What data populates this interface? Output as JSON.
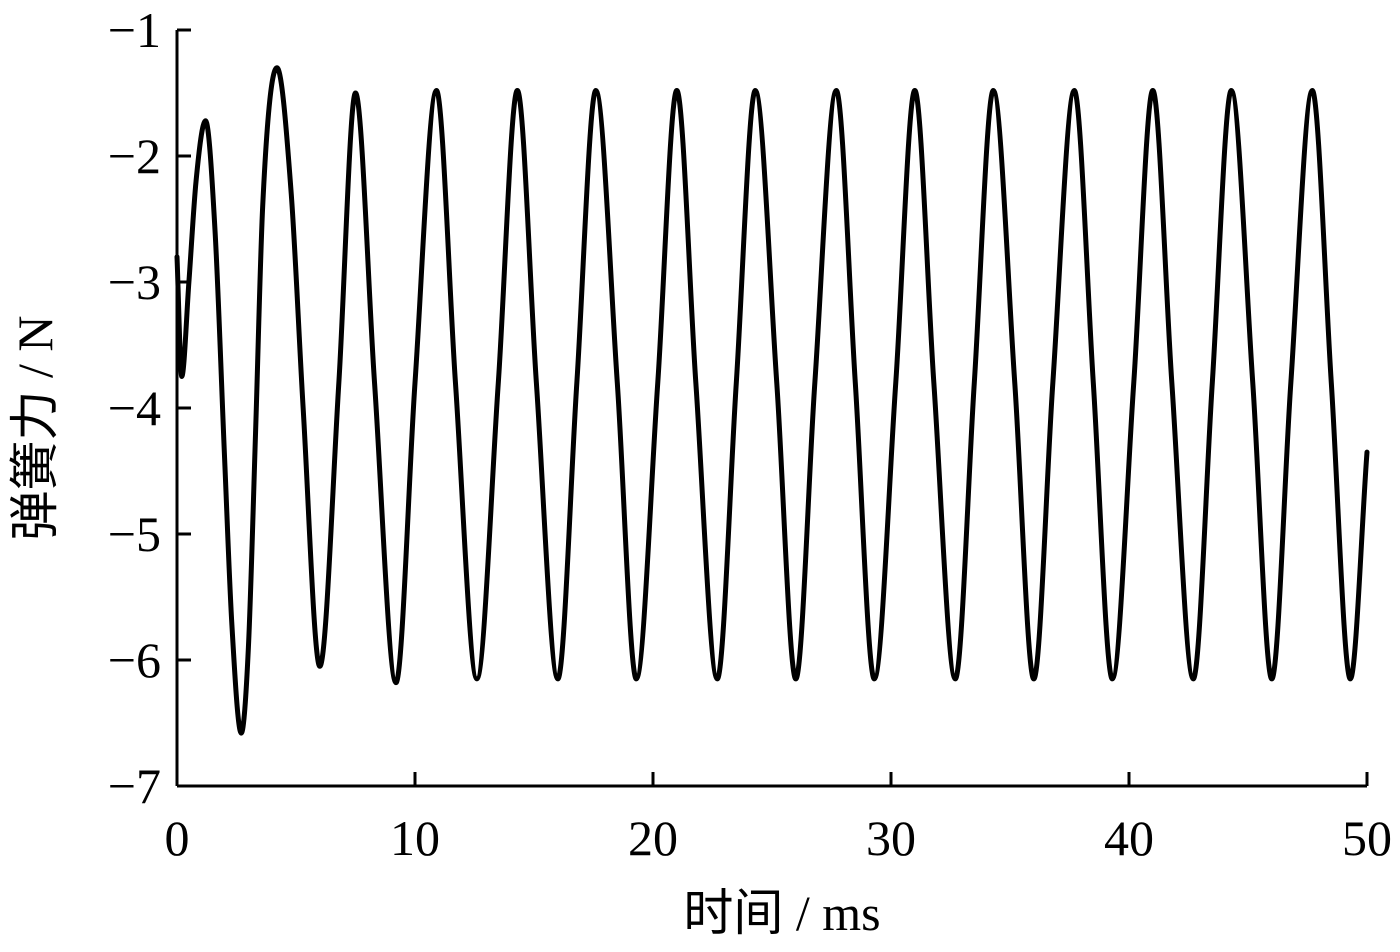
{
  "chart_data": {
    "type": "line",
    "xlabel": "时间 / ms",
    "ylabel": "弹簧力 / N",
    "xlim": [
      0,
      50
    ],
    "ylim": [
      -7,
      -1
    ],
    "xticks": [
      0,
      10,
      20,
      30,
      40,
      50
    ],
    "yticks": [
      -7,
      -6,
      -5,
      -4,
      -3,
      -2,
      -1
    ],
    "xtick_labels": [
      "0",
      "10",
      "20",
      "30",
      "40",
      "50"
    ],
    "ytick_labels": [
      "−7",
      "−6",
      "−5",
      "−4",
      "−3",
      "−2",
      "−1"
    ],
    "grid": false,
    "line_color": "#000000",
    "series": [
      {
        "x": [
          0,
          0.2,
          0.5,
          0.8,
          1.2,
          1.6,
          2.0,
          2.3,
          2.7,
          3.0,
          3.3,
          3.6,
          4.2,
          4.8,
          5.3,
          6.0,
          6.8,
          7.5,
          8.3,
          9.2,
          10.0,
          10.9,
          11.7,
          12.6,
          13.5,
          14.3,
          15.1,
          16.0,
          16.8,
          17.6,
          18.5,
          19.3,
          20.2,
          21.0,
          21.8,
          22.7,
          23.5,
          24.3,
          25.2,
          26.0,
          26.8,
          27.7,
          28.5,
          29.3,
          30.2,
          31.0,
          31.8,
          32.7,
          33.5,
          34.3,
          35.2,
          36.0,
          36.8,
          37.7,
          38.5,
          39.3,
          40.2,
          41.0,
          41.8,
          42.7,
          43.5,
          44.3,
          45.2,
          46.0,
          46.8,
          47.7,
          48.5,
          49.3,
          50.0
        ],
        "y": [
          -2.8,
          -3.75,
          -3.0,
          -2.2,
          -1.72,
          -2.6,
          -4.4,
          -5.7,
          -6.58,
          -5.9,
          -4.2,
          -2.4,
          -1.3,
          -2.3,
          -4.0,
          -6.05,
          -3.8,
          -1.5,
          -3.8,
          -6.18,
          -3.8,
          -1.48,
          -3.8,
          -6.15,
          -3.8,
          -1.48,
          -3.8,
          -6.15,
          -3.8,
          -1.48,
          -3.8,
          -6.15,
          -3.8,
          -1.48,
          -3.8,
          -6.15,
          -3.8,
          -1.48,
          -3.8,
          -6.15,
          -3.8,
          -1.48,
          -3.8,
          -6.15,
          -3.8,
          -1.48,
          -3.8,
          -6.15,
          -3.8,
          -1.48,
          -3.8,
          -6.15,
          -3.8,
          -1.48,
          -3.8,
          -6.15,
          -3.8,
          -1.48,
          -3.8,
          -6.15,
          -3.8,
          -1.48,
          -3.8,
          -6.15,
          -3.8,
          -1.48,
          -3.8,
          -6.15,
          -4.35
        ]
      }
    ]
  }
}
